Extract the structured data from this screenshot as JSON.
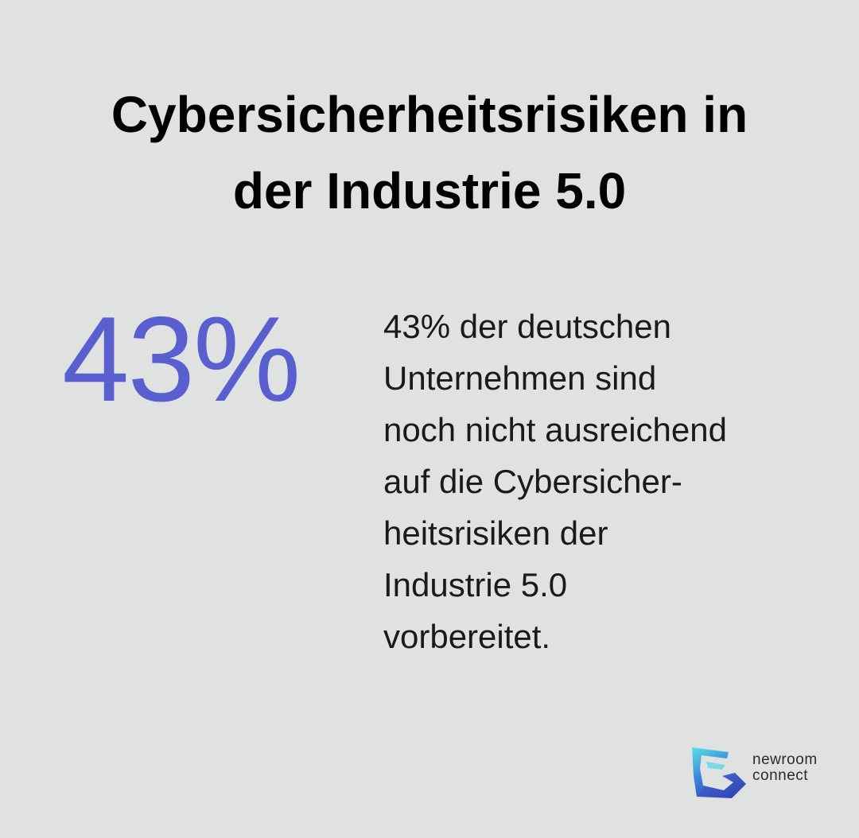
{
  "title": {
    "line1": "Cybersicherheitsrisiken in",
    "line2": "der Industrie 5.0"
  },
  "stat": {
    "value": "43%",
    "color": "#5a5fd0"
  },
  "description": {
    "lines": [
      "43% der deutschen",
      "Unternehmen sind",
      "noch nicht ausreichend",
      "auf die Cybersicher-",
      "heitsrisiken der",
      "Industrie 5.0",
      "vorbereitet."
    ]
  },
  "brand": {
    "line1": "newroom",
    "line2": "connect",
    "icon": "newroom-connect-logo-icon",
    "colors": [
      "#5ce0e8",
      "#3a7fd8",
      "#2f4fc0"
    ]
  },
  "background_color": "#e0e2e2"
}
